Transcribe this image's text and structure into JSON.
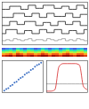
{
  "chart_data": [
    {
      "type": "line",
      "tick_labels": false,
      "xlim": [
        0,
        23
      ],
      "ylim": [
        0,
        42
      ],
      "x": [
        0,
        1,
        2,
        3,
        4,
        5,
        6,
        7,
        8,
        9,
        10,
        11,
        12,
        13,
        14,
        15,
        16,
        17,
        18,
        19,
        20,
        21,
        22,
        23
      ],
      "series": [
        {
          "color": "#222222",
          "values": [
            35,
            35,
            38,
            38,
            38,
            35,
            35,
            39,
            39,
            36,
            36,
            39,
            39,
            39,
            36,
            36,
            38,
            38,
            35,
            35,
            39,
            39,
            36,
            36
          ]
        },
        {
          "color": "#222222",
          "values": [
            27,
            27,
            27,
            31,
            31,
            31,
            28,
            28,
            31,
            31,
            27,
            27,
            31,
            31,
            28,
            28,
            28,
            31,
            31,
            27,
            27,
            30,
            30,
            27
          ]
        },
        {
          "color": "#222222",
          "values": [
            19,
            19,
            23,
            23,
            20,
            20,
            23,
            23,
            23,
            19,
            19,
            22,
            22,
            19,
            19,
            23,
            23,
            20,
            20,
            23,
            23,
            19,
            19,
            22
          ]
        },
        {
          "color": "#222222",
          "values": [
            11,
            15,
            15,
            15,
            11,
            11,
            14,
            14,
            11,
            11,
            15,
            15,
            12,
            12,
            15,
            15,
            11,
            11,
            14,
            14,
            11,
            11,
            15,
            15
          ]
        },
        {
          "color": "#999999",
          "values": [
            4,
            5,
            4,
            6,
            5,
            4,
            5,
            6,
            4,
            5,
            5,
            4,
            6,
            5,
            4,
            5,
            6,
            4,
            5,
            4,
            6,
            5,
            4,
            5
          ]
        }
      ]
    },
    {
      "type": "heatmap",
      "tick_labels": false,
      "zlim": [
        0,
        1
      ],
      "cells": [
        [
          0.1,
          0.15,
          0.2,
          0.1,
          0.3,
          0.2,
          0.1,
          0.25,
          0.2,
          0.1,
          0.15,
          0.3,
          0.2,
          0.1,
          0.2,
          0.25,
          0.1,
          0.2,
          0.3,
          0.15,
          0.1,
          0.2,
          0.25,
          0.1
        ],
        [
          0.3,
          0.35,
          0.4,
          0.3,
          0.5,
          0.4,
          0.3,
          0.45,
          0.4,
          0.3,
          0.35,
          0.5,
          0.4,
          0.3,
          0.4,
          0.45,
          0.3,
          0.4,
          0.5,
          0.35,
          0.3,
          0.4,
          0.45,
          0.3
        ],
        [
          0.5,
          0.55,
          0.6,
          0.5,
          0.7,
          0.6,
          0.5,
          0.65,
          0.6,
          0.5,
          0.55,
          0.7,
          0.6,
          0.5,
          0.6,
          0.65,
          0.5,
          0.6,
          0.7,
          0.55,
          0.5,
          0.6,
          0.65,
          0.5
        ],
        [
          0.7,
          0.75,
          0.8,
          0.7,
          0.85,
          0.8,
          0.7,
          0.8,
          0.8,
          0.7,
          0.75,
          0.85,
          0.8,
          0.7,
          0.8,
          0.8,
          0.7,
          0.8,
          0.85,
          0.75,
          0.7,
          0.8,
          0.8,
          0.7
        ],
        [
          0.85,
          0.9,
          0.95,
          0.85,
          1,
          0.95,
          0.85,
          0.9,
          0.95,
          0.85,
          0.9,
          1,
          0.95,
          0.85,
          0.95,
          0.9,
          0.85,
          0.95,
          1,
          0.9,
          0.85,
          0.95,
          0.9,
          0.85
        ]
      ]
    },
    {
      "type": "scatter",
      "tick_labels": false,
      "color": "#3b6fc4",
      "xlim": [
        0,
        10
      ],
      "ylim": [
        0,
        10
      ],
      "x": [
        0.5,
        1,
        1.5,
        2,
        2.5,
        3,
        3.5,
        4,
        4.5,
        5,
        5.5,
        6,
        6.5,
        7,
        7.5,
        8,
        8.5,
        9,
        9.5
      ],
      "values": [
        0.6,
        1.1,
        1.4,
        2.1,
        2.4,
        3.1,
        3.4,
        4.1,
        4.6,
        4.9,
        5.6,
        6.1,
        6.4,
        7.1,
        7.4,
        8.1,
        8.6,
        8.9,
        9.4
      ]
    },
    {
      "type": "line",
      "tick_labels": false,
      "xlim": [
        0,
        10
      ],
      "ylim": [
        0,
        1.1
      ],
      "x": [
        0,
        1,
        2,
        3,
        4,
        5,
        6,
        7,
        8,
        9,
        10
      ],
      "series": [
        {
          "color": "#999999",
          "values": [
            0.3,
            0.3,
            0.3,
            0.3,
            0.3,
            0.3,
            0.3,
            0.3,
            0.3,
            0.3,
            0.3
          ]
        },
        {
          "color": "#d62728",
          "values": [
            0.05,
            0.05,
            0.1,
            0.9,
            1,
            1,
            1,
            1,
            0.95,
            0.2,
            0.1
          ]
        }
      ]
    }
  ]
}
